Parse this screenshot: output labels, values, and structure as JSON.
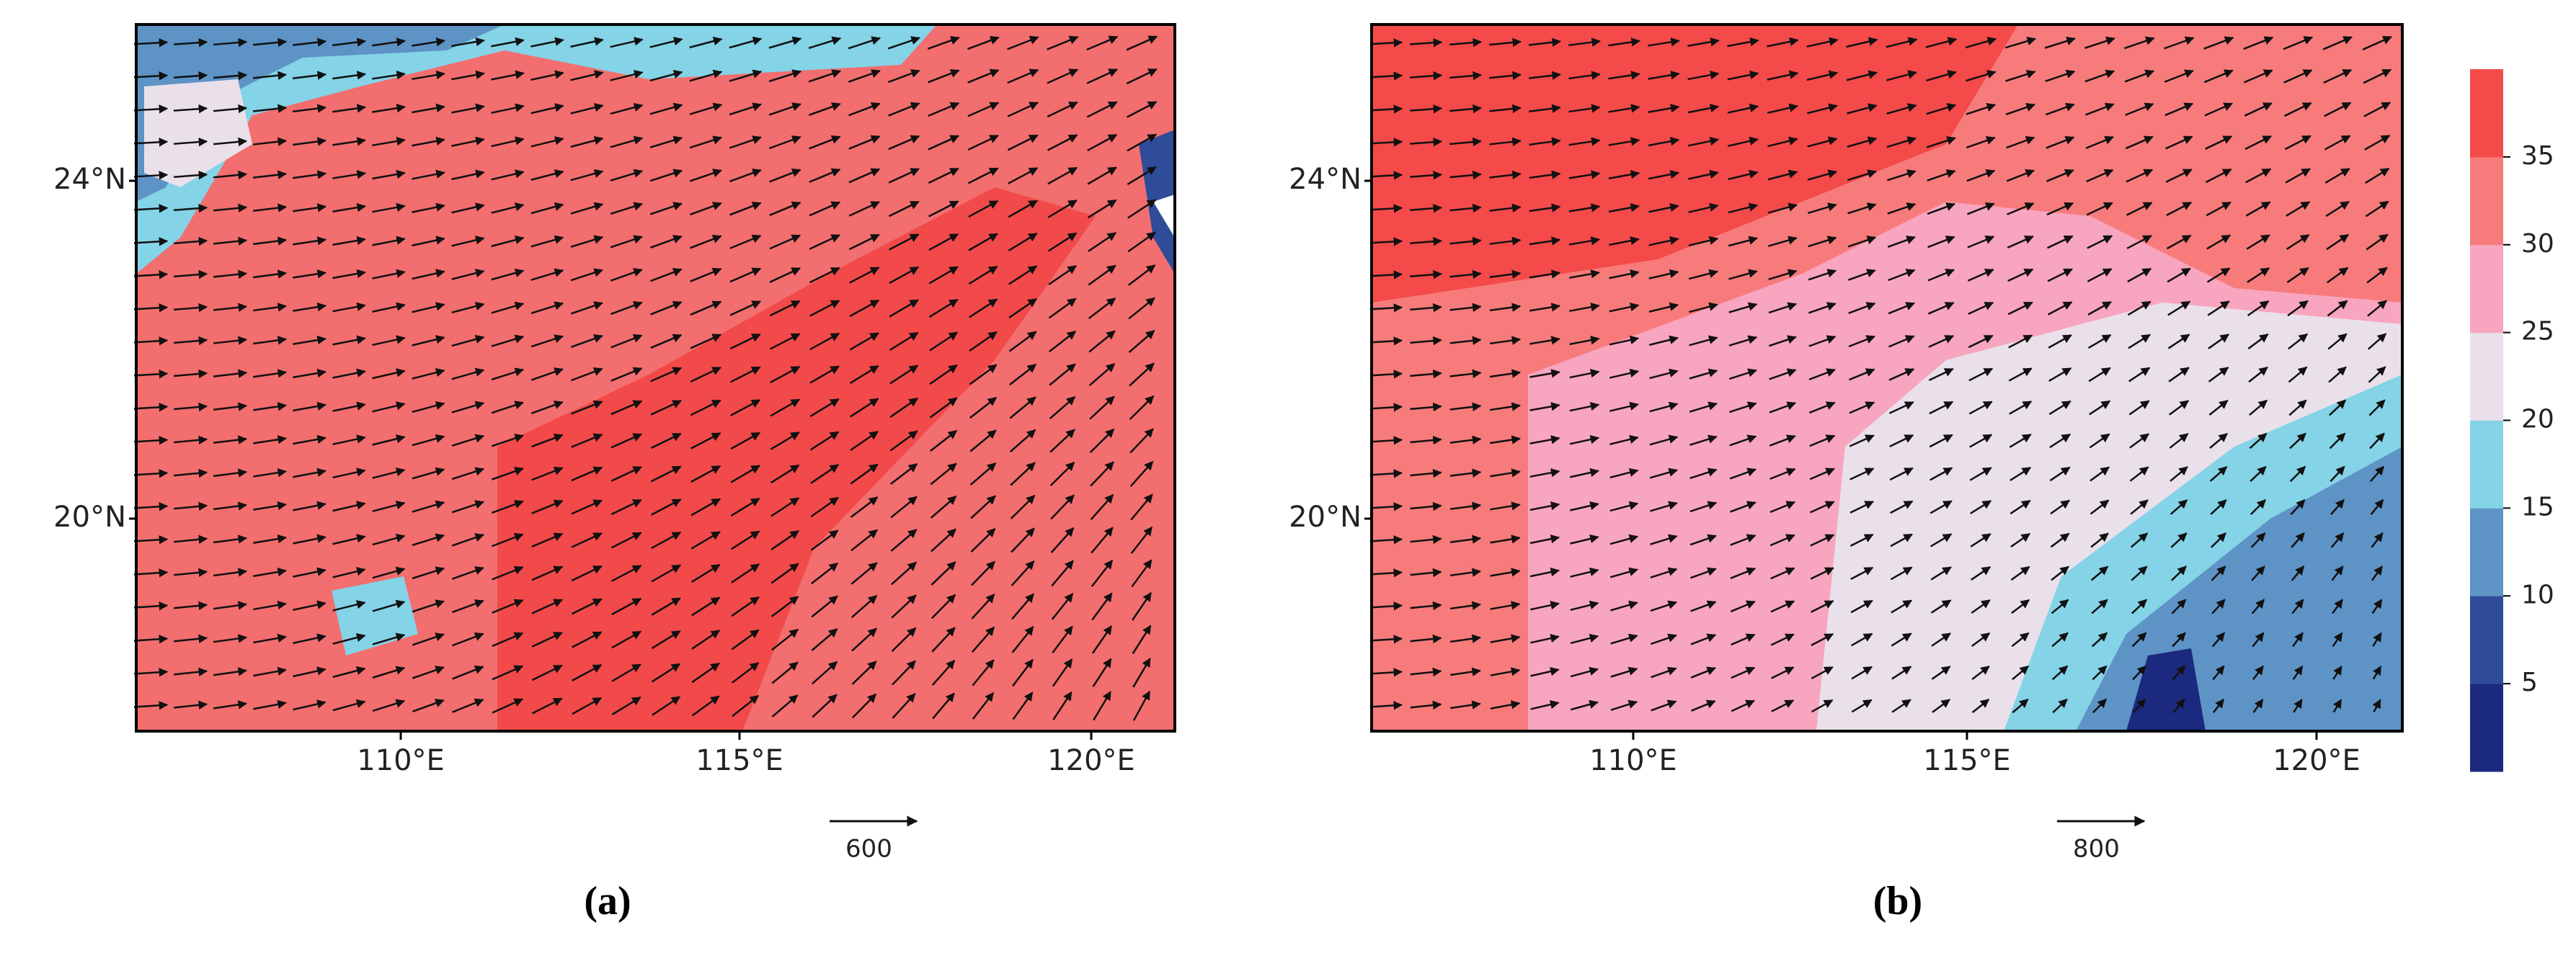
{
  "panels": [
    {
      "caption": "(a)",
      "lat_labels": [
        "24°N",
        "20°N"
      ],
      "lon_labels": [
        "110°E",
        "115°E",
        "120°E"
      ],
      "reference_vector": "600"
    },
    {
      "caption": "(b)",
      "lat_labels": [
        "24°N",
        "20°N"
      ],
      "lon_labels": [
        "110°E",
        "115°E",
        "120°E"
      ],
      "reference_vector": "800"
    }
  ],
  "colorbar": {
    "ticks": [
      5,
      10,
      15,
      20,
      25,
      30,
      35
    ],
    "colors": [
      "#1b2a7e",
      "#2f4c99",
      "#5e93c6",
      "#84d3e6",
      "#e9e0ea",
      "#f8a5bf",
      "#f77b7b",
      "#f44a4a"
    ]
  }
}
